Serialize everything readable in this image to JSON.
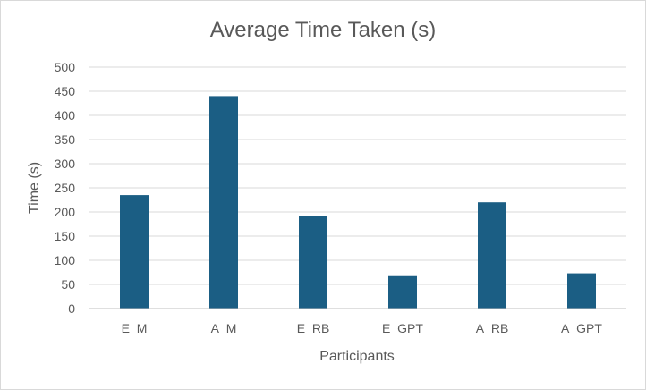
{
  "chart_data": {
    "type": "bar",
    "title": "Average Time Taken (s)",
    "xlabel": "Participants",
    "ylabel": "Time (s)",
    "categories": [
      "E_M",
      "A_M",
      "E_RB",
      "E_GPT",
      "A_RB",
      "A_GPT"
    ],
    "values": [
      235,
      440,
      192,
      69,
      220,
      73
    ],
    "ylim": [
      0,
      500
    ],
    "yticks": [
      0,
      50,
      100,
      150,
      200,
      250,
      300,
      350,
      400,
      450,
      500
    ],
    "bar_color": "#1b5e84",
    "grid": true,
    "legend": "none"
  }
}
